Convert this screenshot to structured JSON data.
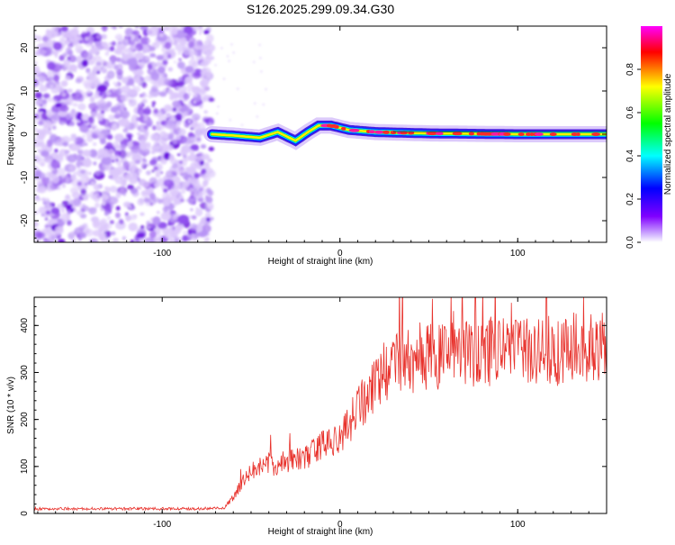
{
  "title": "S126.2025.299.09.34.G30",
  "chart_data": [
    {
      "type": "heatmap",
      "xlabel": "Height of straight line (km)",
      "ylabel": "Frequency (Hz)",
      "xlim": [
        -172,
        150
      ],
      "ylim": [
        -25,
        25
      ],
      "xticks": [
        -100,
        0,
        100
      ],
      "xtick_labels": [
        "-100",
        "0",
        "100"
      ],
      "yticks": [
        -20,
        -10,
        0,
        10,
        20
      ],
      "ytick_labels": [
        "-20",
        "-10",
        "0",
        "10",
        "20"
      ],
      "noise_region_x": [
        -172,
        -72
      ],
      "signal_region_x": [
        -72,
        150
      ],
      "signal_frequency_track": [
        {
          "x": -72,
          "f": 0.0
        },
        {
          "x": -60,
          "f": -0.3
        },
        {
          "x": -45,
          "f": -0.8
        },
        {
          "x": -35,
          "f": 0.5
        },
        {
          "x": -25,
          "f": -1.5
        },
        {
          "x": -18,
          "f": 0.5
        },
        {
          "x": -12,
          "f": 2.0
        },
        {
          "x": -5,
          "f": 2.0
        },
        {
          "x": 5,
          "f": 1.0
        },
        {
          "x": 20,
          "f": 0.5
        },
        {
          "x": 50,
          "f": 0.2
        },
        {
          "x": 100,
          "f": 0.0
        },
        {
          "x": 150,
          "f": 0.0
        }
      ]
    },
    {
      "type": "line",
      "xlabel": "Height of straight line (km)",
      "ylabel": "SNR (10 * v/v)",
      "xlim": [
        -172,
        150
      ],
      "ylim": [
        0,
        460
      ],
      "xticks": [
        -100,
        0,
        100
      ],
      "xtick_labels": [
        "-100",
        "0",
        "100"
      ],
      "yticks": [
        0,
        100,
        200,
        300,
        400
      ],
      "ytick_labels": [
        "0",
        "100",
        "200",
        "300",
        "400"
      ],
      "series": [
        {
          "name": "SNR",
          "color": "#e8322c",
          "x": [
            -172,
            -150,
            -120,
            -100,
            -80,
            -65,
            -60,
            -55,
            -50,
            -45,
            -40,
            -35,
            -30,
            -25,
            -20,
            -15,
            -10,
            -5,
            0,
            5,
            10,
            15,
            20,
            25,
            30,
            35,
            40,
            45,
            50,
            60,
            70,
            80,
            90,
            100,
            110,
            120,
            130,
            140,
            150
          ],
          "values": [
            10,
            10,
            10,
            10,
            10,
            12,
            35,
            65,
            90,
            100,
            110,
            95,
            110,
            120,
            115,
            130,
            150,
            150,
            160,
            190,
            220,
            250,
            280,
            300,
            310,
            330,
            320,
            340,
            335,
            330,
            340,
            345,
            350,
            345,
            350,
            345,
            355,
            350,
            350
          ]
        }
      ]
    },
    {
      "type": "colorbar",
      "label": "Normalized spectral amplitude",
      "range": [
        0,
        1
      ],
      "ticks": [
        0.0,
        0.2,
        0.4,
        0.6,
        0.8
      ],
      "tick_labels": [
        "0.0",
        "0.2",
        "0.4",
        "0.6",
        "0.8"
      ],
      "colors": [
        "#ffffff",
        "#8000ff",
        "#0000ff",
        "#00ffff",
        "#00ff00",
        "#ffff00",
        "#ff0000",
        "#ff00ff"
      ]
    }
  ]
}
